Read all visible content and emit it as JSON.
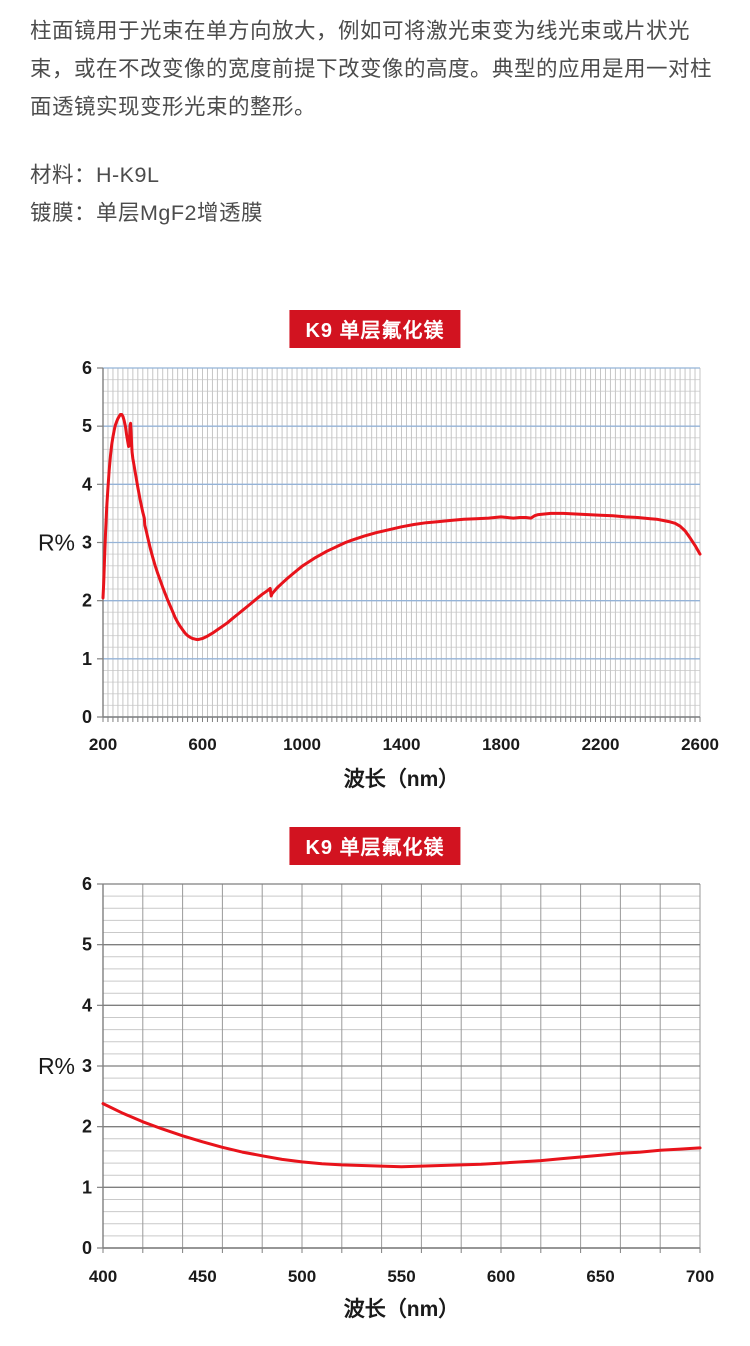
{
  "page": {
    "intro_lines": [
      "柱面镜用于光束在单方向放大，例如可将激光束变为线光束或片状光",
      "束，或在不改变像的宽度前提下改变像的高度。典型的应用是用一对柱",
      "面透镜实现变形光束的整形。"
    ],
    "material_line": "材料：H-K9L",
    "coating_line": "镀膜：单层MgF2增透膜"
  },
  "chart_data": [
    {
      "type": "line",
      "title": "K9 单层氟化镁",
      "title_bg": "#d21320",
      "xlabel": "波长（nm）",
      "ylabel": "R%",
      "xlim": [
        200,
        2600
      ],
      "ylim": [
        0,
        6
      ],
      "x_ticks": [
        200,
        600,
        1000,
        1400,
        1800,
        2200,
        2600
      ],
      "y_ticks": [
        0,
        1,
        2,
        3,
        4,
        5,
        6
      ],
      "x_grid_step": 20,
      "y_minor_step": 0.2,
      "grid_major_color": "#95b3d7",
      "grid_minor_color": "#d6d6d6",
      "grid_vertical_color": "#c6c6c6",
      "axis_color": "#7f7f7f",
      "line_color": "#e8131b",
      "series_name": "K9 single-layer MgF2 reflectance 200-2600nm",
      "points": [
        [
          200,
          2.05
        ],
        [
          203,
          2.3
        ],
        [
          206,
          2.7
        ],
        [
          210,
          3.15
        ],
        [
          215,
          3.6
        ],
        [
          220,
          3.95
        ],
        [
          225,
          4.25
        ],
        [
          230,
          4.5
        ],
        [
          235,
          4.68
        ],
        [
          240,
          4.82
        ],
        [
          245,
          4.93
        ],
        [
          250,
          5.02
        ],
        [
          255,
          5.08
        ],
        [
          260,
          5.13
        ],
        [
          265,
          5.17
        ],
        [
          270,
          5.2
        ],
        [
          275,
          5.2
        ],
        [
          280,
          5.17
        ],
        [
          285,
          5.1
        ],
        [
          290,
          5.0
        ],
        [
          295,
          4.85
        ],
        [
          300,
          4.72
        ],
        [
          303,
          4.65
        ],
        [
          306,
          4.67
        ],
        [
          309,
          5.02
        ],
        [
          311,
          5.05
        ],
        [
          313,
          4.9
        ],
        [
          315,
          4.7
        ],
        [
          317,
          4.55
        ],
        [
          320,
          4.45
        ],
        [
          325,
          4.32
        ],
        [
          330,
          4.2
        ],
        [
          340,
          3.95
        ],
        [
          350,
          3.72
        ],
        [
          360,
          3.52
        ],
        [
          366,
          3.42
        ],
        [
          368,
          3.3
        ],
        [
          375,
          3.18
        ],
        [
          380,
          3.08
        ],
        [
          390,
          2.9
        ],
        [
          400,
          2.74
        ],
        [
          410,
          2.6
        ],
        [
          420,
          2.47
        ],
        [
          430,
          2.35
        ],
        [
          440,
          2.23
        ],
        [
          450,
          2.12
        ],
        [
          460,
          2.01
        ],
        [
          470,
          1.91
        ],
        [
          480,
          1.81
        ],
        [
          490,
          1.71
        ],
        [
          500,
          1.63
        ],
        [
          510,
          1.56
        ],
        [
          520,
          1.5
        ],
        [
          530,
          1.44
        ],
        [
          540,
          1.4
        ],
        [
          550,
          1.37
        ],
        [
          560,
          1.35
        ],
        [
          570,
          1.34
        ],
        [
          580,
          1.33
        ],
        [
          590,
          1.34
        ],
        [
          600,
          1.35
        ],
        [
          620,
          1.39
        ],
        [
          640,
          1.44
        ],
        [
          660,
          1.5
        ],
        [
          680,
          1.56
        ],
        [
          700,
          1.62
        ],
        [
          720,
          1.69
        ],
        [
          740,
          1.76
        ],
        [
          760,
          1.83
        ],
        [
          780,
          1.9
        ],
        [
          800,
          1.97
        ],
        [
          820,
          2.04
        ],
        [
          840,
          2.11
        ],
        [
          860,
          2.17
        ],
        [
          872,
          2.21
        ],
        [
          876,
          2.08
        ],
        [
          880,
          2.12
        ],
        [
          890,
          2.17
        ],
        [
          900,
          2.22
        ],
        [
          920,
          2.3
        ],
        [
          940,
          2.38
        ],
        [
          960,
          2.45
        ],
        [
          980,
          2.52
        ],
        [
          1000,
          2.59
        ],
        [
          1025,
          2.66
        ],
        [
          1050,
          2.73
        ],
        [
          1075,
          2.79
        ],
        [
          1100,
          2.85
        ],
        [
          1125,
          2.9
        ],
        [
          1150,
          2.95
        ],
        [
          1175,
          3.0
        ],
        [
          1200,
          3.04
        ],
        [
          1250,
          3.11
        ],
        [
          1300,
          3.17
        ],
        [
          1350,
          3.22
        ],
        [
          1400,
          3.27
        ],
        [
          1450,
          3.31
        ],
        [
          1500,
          3.34
        ],
        [
          1550,
          3.36
        ],
        [
          1600,
          3.38
        ],
        [
          1650,
          3.4
        ],
        [
          1700,
          3.41
        ],
        [
          1750,
          3.42
        ],
        [
          1800,
          3.44
        ],
        [
          1825,
          3.43
        ],
        [
          1850,
          3.42
        ],
        [
          1875,
          3.43
        ],
        [
          1900,
          3.43
        ],
        [
          1920,
          3.42
        ],
        [
          1935,
          3.46
        ],
        [
          1950,
          3.48
        ],
        [
          1975,
          3.49
        ],
        [
          2000,
          3.5
        ],
        [
          2050,
          3.5
        ],
        [
          2100,
          3.49
        ],
        [
          2150,
          3.48
        ],
        [
          2200,
          3.47
        ],
        [
          2250,
          3.46
        ],
        [
          2300,
          3.44
        ],
        [
          2350,
          3.43
        ],
        [
          2400,
          3.41
        ],
        [
          2425,
          3.4
        ],
        [
          2450,
          3.38
        ],
        [
          2475,
          3.36
        ],
        [
          2500,
          3.33
        ],
        [
          2520,
          3.28
        ],
        [
          2540,
          3.2
        ],
        [
          2560,
          3.08
        ],
        [
          2580,
          2.95
        ],
        [
          2600,
          2.8
        ]
      ]
    },
    {
      "type": "line",
      "title": "K9 单层氟化镁",
      "title_bg": "#d21320",
      "xlabel": "波长（nm）",
      "ylabel": "R%",
      "xlim": [
        400,
        700
      ],
      "ylim": [
        0,
        6
      ],
      "x_ticks": [
        400,
        450,
        500,
        550,
        600,
        650,
        700
      ],
      "y_ticks": [
        0,
        1,
        2,
        3,
        4,
        5,
        6
      ],
      "x_grid_step": 20,
      "y_minor_step": 0.2,
      "grid_major_color": "#7f7f7f",
      "grid_minor_color": "#c9c9c9",
      "grid_vertical_color": "#9a9a9a",
      "axis_color": "#7f7f7f",
      "line_color": "#e8131b",
      "series_name": "K9 single-layer MgF2 reflectance 400-700nm",
      "points": [
        [
          400,
          2.38
        ],
        [
          410,
          2.22
        ],
        [
          420,
          2.08
        ],
        [
          430,
          1.96
        ],
        [
          440,
          1.85
        ],
        [
          450,
          1.75
        ],
        [
          460,
          1.66
        ],
        [
          470,
          1.58
        ],
        [
          480,
          1.52
        ],
        [
          490,
          1.46
        ],
        [
          500,
          1.42
        ],
        [
          510,
          1.39
        ],
        [
          520,
          1.37
        ],
        [
          530,
          1.36
        ],
        [
          540,
          1.35
        ],
        [
          550,
          1.34
        ],
        [
          560,
          1.35
        ],
        [
          570,
          1.36
        ],
        [
          580,
          1.37
        ],
        [
          590,
          1.38
        ],
        [
          600,
          1.4
        ],
        [
          610,
          1.42
        ],
        [
          620,
          1.44
        ],
        [
          630,
          1.47
        ],
        [
          640,
          1.5
        ],
        [
          650,
          1.53
        ],
        [
          660,
          1.56
        ],
        [
          670,
          1.58
        ],
        [
          680,
          1.61
        ],
        [
          690,
          1.63
        ],
        [
          700,
          1.65
        ]
      ]
    }
  ]
}
